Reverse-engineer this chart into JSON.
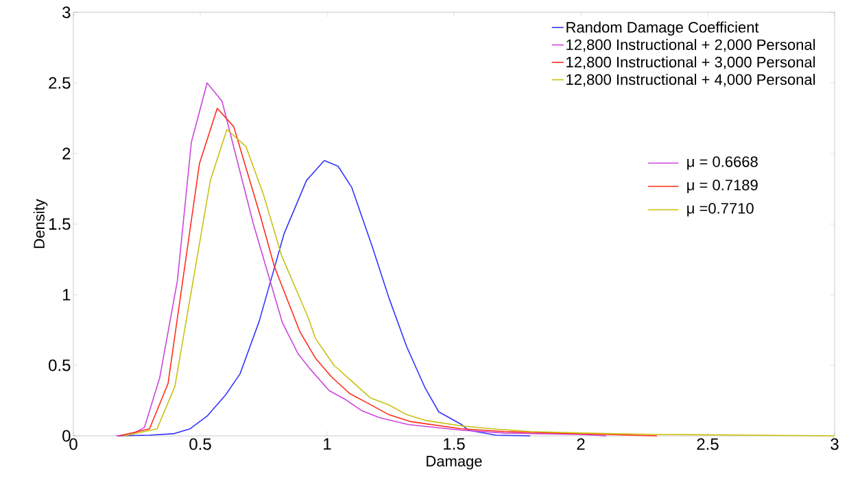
{
  "chart_data": {
    "type": "line",
    "xlabel": "Damage",
    "ylabel": "Density",
    "xlim": [
      0,
      3
    ],
    "ylim": [
      0,
      3
    ],
    "xticks": [
      0,
      0.5,
      1,
      1.5,
      2,
      2.5,
      3
    ],
    "yticks": [
      0,
      0.5,
      1,
      1.5,
      2,
      2.5,
      3
    ],
    "grid": false,
    "legend": "top right",
    "line_style": "solid",
    "series": [
      {
        "name": "Random Damage Coefficient",
        "color": "#3333ff",
        "x": [
          0.17,
          0.3,
          0.395,
          0.46,
          0.527,
          0.6,
          0.657,
          0.732,
          0.778,
          0.83,
          0.919,
          0.989,
          1.043,
          1.097,
          1.178,
          1.243,
          1.314,
          1.386,
          1.44,
          1.53,
          1.557,
          1.665,
          1.8
        ],
        "values": [
          0,
          0.005,
          0.015,
          0.05,
          0.14,
          0.29,
          0.44,
          0.81,
          1.1,
          1.43,
          1.81,
          1.95,
          1.91,
          1.76,
          1.34,
          0.98,
          0.63,
          0.34,
          0.17,
          0.08,
          0.04,
          0.005,
          0
        ]
      },
      {
        "name": "12,800 Instructional + 2,000 Personal",
        "color": "#cc44dd",
        "x": [
          0.17,
          0.23,
          0.28,
          0.34,
          0.41,
          0.465,
          0.527,
          0.586,
          0.708,
          0.824,
          0.886,
          0.93,
          1.008,
          1.07,
          1.135,
          1.205,
          1.32,
          1.53,
          1.7,
          2.0,
          2.1
        ],
        "values": [
          0,
          0.01,
          0.06,
          0.41,
          1.1,
          2.08,
          2.5,
          2.37,
          1.51,
          0.8,
          0.58,
          0.48,
          0.32,
          0.26,
          0.18,
          0.13,
          0.08,
          0.04,
          0.02,
          0.01,
          0
        ]
      },
      {
        "name": "12,800 Instructional + 3,000 Personal",
        "color": "#ff2a1a",
        "x": [
          0.18,
          0.3,
          0.373,
          0.497,
          0.567,
          0.632,
          0.738,
          0.792,
          0.892,
          0.954,
          1.016,
          1.089,
          1.162,
          1.243,
          1.332,
          1.53,
          1.7,
          1.9,
          2.1,
          2.3
        ],
        "values": [
          0,
          0.05,
          0.37,
          1.93,
          2.32,
          2.19,
          1.55,
          1.2,
          0.74,
          0.55,
          0.42,
          0.3,
          0.23,
          0.15,
          0.1,
          0.05,
          0.03,
          0.02,
          0.01,
          0
        ]
      },
      {
        "name": "12,800 Instructional + 4,000 Personal",
        "color": "#c8c010",
        "x": [
          0.2,
          0.33,
          0.4,
          0.54,
          0.605,
          0.68,
          0.749,
          0.82,
          0.927,
          0.954,
          1.027,
          1.17,
          1.243,
          1.314,
          1.386,
          1.53,
          1.65,
          1.8,
          2.0,
          2.3,
          3.0
        ],
        "values": [
          0,
          0.05,
          0.35,
          1.81,
          2.17,
          2.05,
          1.71,
          1.28,
          0.83,
          0.69,
          0.5,
          0.27,
          0.22,
          0.15,
          0.11,
          0.07,
          0.05,
          0.03,
          0.02,
          0.01,
          0
        ]
      }
    ],
    "annotations": [
      "μ = 0.6668",
      "μ = 0.7189",
      "μ =0.7710"
    ]
  }
}
